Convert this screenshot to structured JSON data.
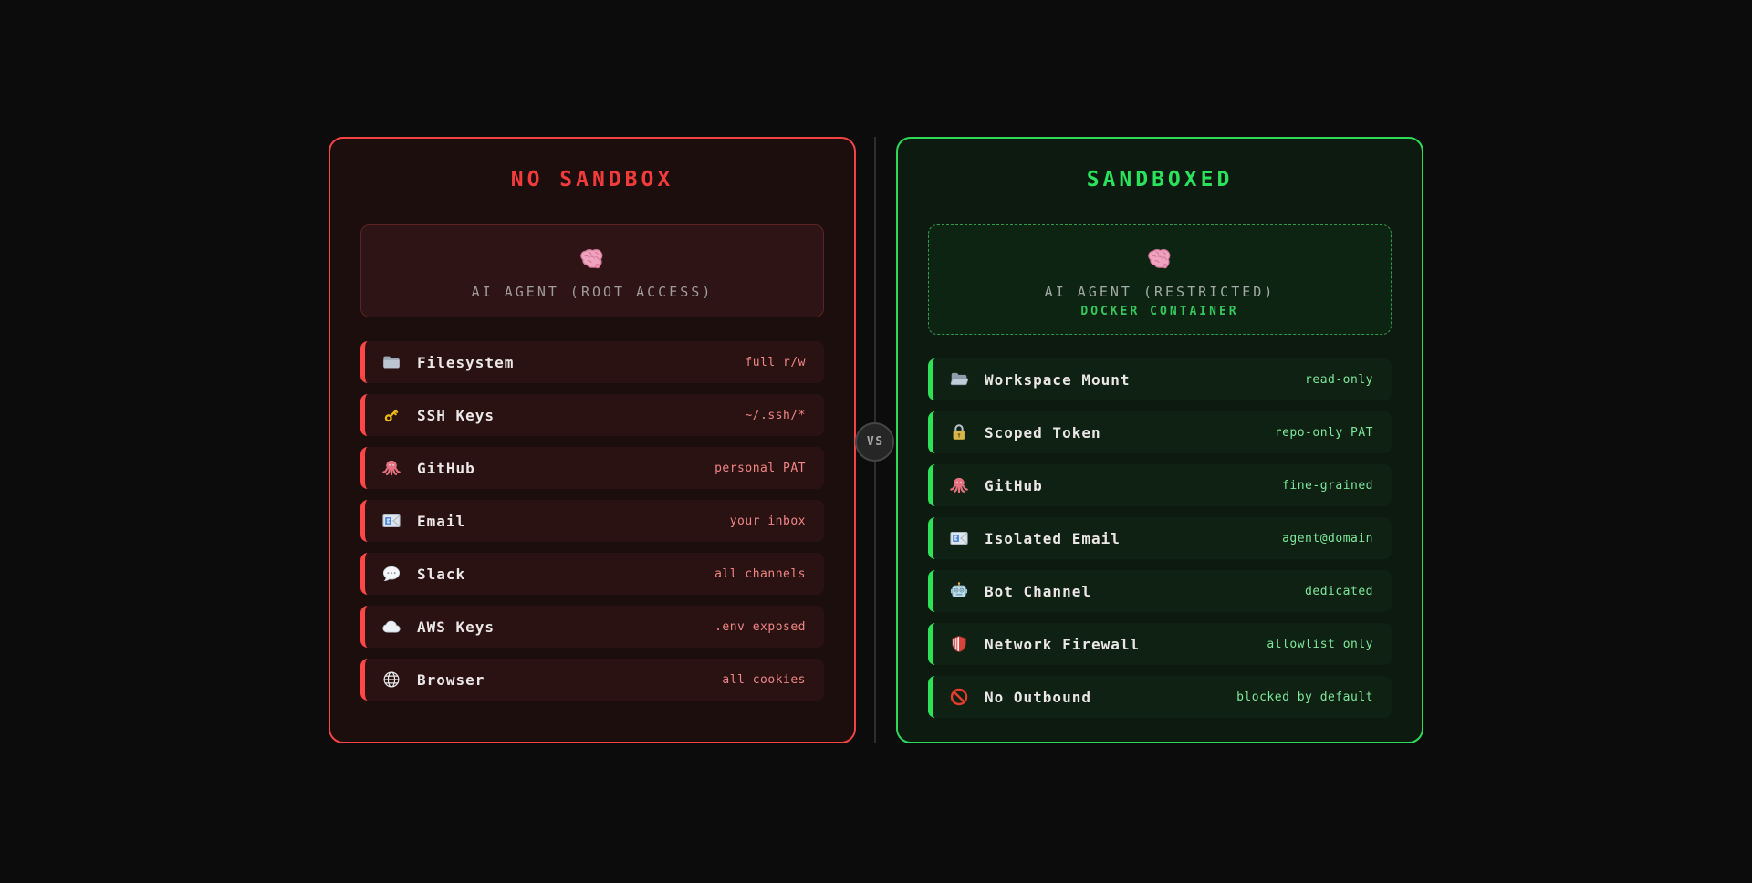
{
  "vs_badge": {
    "label": "VS"
  },
  "colors": {
    "page_bg": "#0c0c0c",
    "danger_accent": "#ff4747",
    "danger_border": "#f54343",
    "danger_title": "#f43b3b",
    "danger_value": "#ef8585",
    "safe_accent": "#2ee258",
    "safe_border": "#2ed957",
    "safe_title": "#2ae25b",
    "safe_value": "#7fe79d",
    "docker_label": "#35c75c"
  },
  "panels": {
    "left": {
      "title": "NO SANDBOX",
      "agent_card": {
        "icon": "brain",
        "title": "AI AGENT (ROOT ACCESS)"
      },
      "items": [
        {
          "icon": "folder",
          "label": "Filesystem",
          "value": "full r/w"
        },
        {
          "icon": "key",
          "label": "SSH Keys",
          "value": "~/.ssh/*"
        },
        {
          "icon": "octopus",
          "label": "GitHub",
          "value": "personal PAT"
        },
        {
          "icon": "email",
          "label": "Email",
          "value": "your inbox"
        },
        {
          "icon": "speech-balloon",
          "label": "Slack",
          "value": "all channels"
        },
        {
          "icon": "cloud",
          "label": "AWS Keys",
          "value": ".env exposed"
        },
        {
          "icon": "globe",
          "label": "Browser",
          "value": "all cookies"
        }
      ]
    },
    "right": {
      "title": "SANDBOXED",
      "agent_card": {
        "icon": "brain",
        "title": "AI AGENT (RESTRICTED)",
        "subtitle": "DOCKER CONTAINER"
      },
      "items": [
        {
          "icon": "open-folder",
          "label": "Workspace Mount",
          "value": "read-only"
        },
        {
          "icon": "lock",
          "label": "Scoped Token",
          "value": "repo-only PAT"
        },
        {
          "icon": "octopus",
          "label": "GitHub",
          "value": "fine-grained"
        },
        {
          "icon": "email",
          "label": "Isolated Email",
          "value": "agent@domain"
        },
        {
          "icon": "robot",
          "label": "Bot Channel",
          "value": "dedicated"
        },
        {
          "icon": "shield",
          "label": "Network Firewall",
          "value": "allowlist only"
        },
        {
          "icon": "no-entry",
          "label": "No Outbound",
          "value": "blocked by default"
        }
      ]
    }
  }
}
